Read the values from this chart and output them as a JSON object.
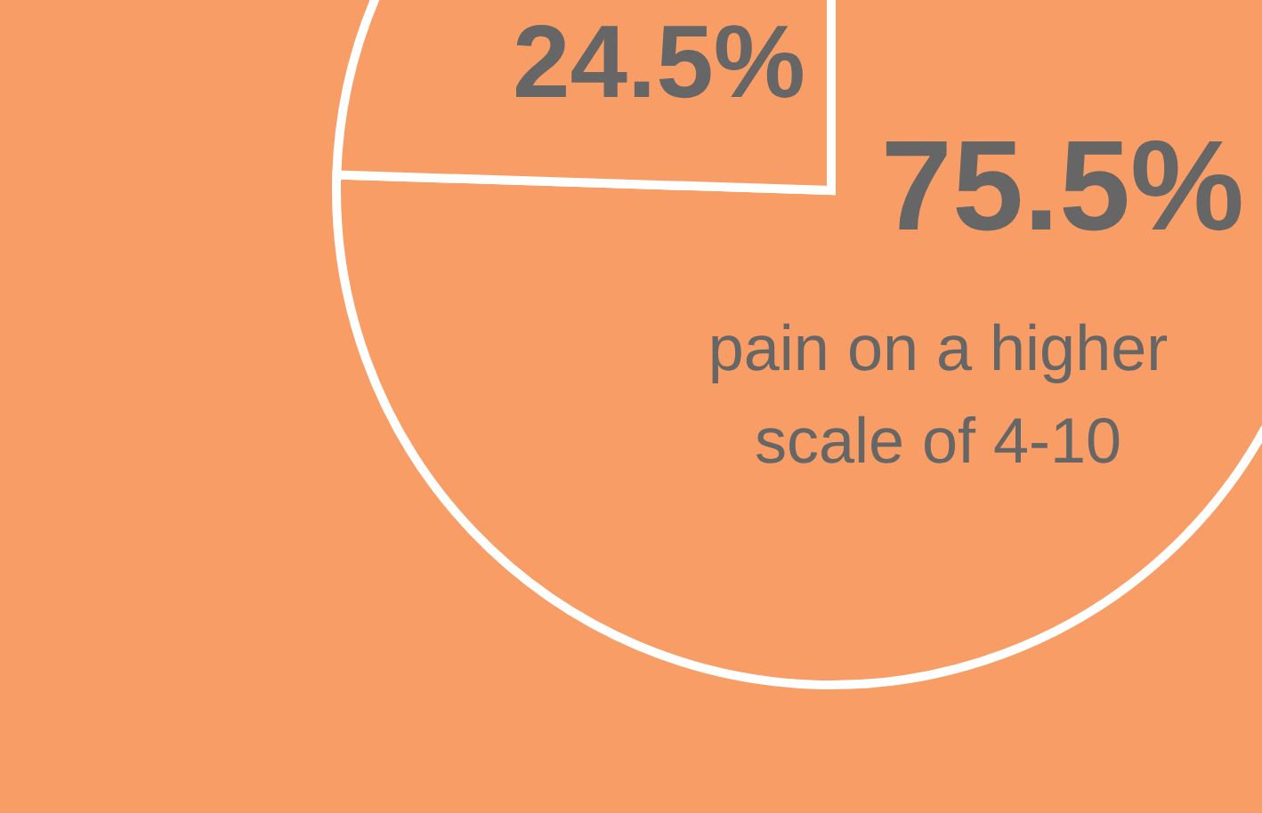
{
  "chart_data": {
    "type": "pie",
    "categories": [
      "pain on a higher scale of 4-10",
      null
    ],
    "values": [
      75.5,
      24.5
    ],
    "colors": [
      "#f89d66",
      "#f89d66"
    ],
    "value_labels": [
      "75.5%",
      "24.5%"
    ]
  }
}
